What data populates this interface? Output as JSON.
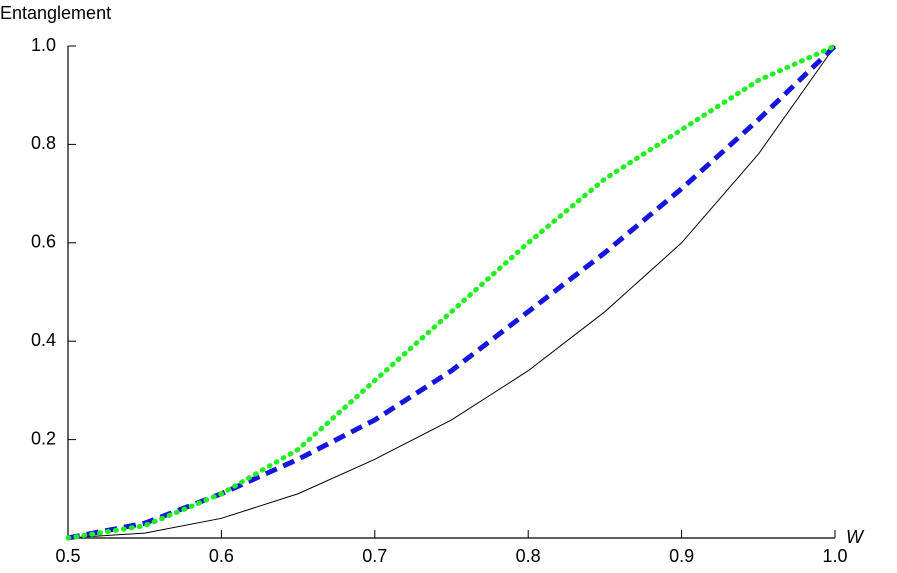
{
  "chart_data": {
    "type": "line",
    "y_label": "Entanglement",
    "x_label": "W",
    "x": [
      0.5,
      0.55,
      0.6,
      0.65,
      0.7,
      0.75,
      0.8,
      0.85,
      0.9,
      0.95,
      1.0
    ],
    "series": [
      {
        "color": "#000000",
        "style": "solid",
        "values": [
          0,
          0.01,
          0.04,
          0.09,
          0.16,
          0.24,
          0.34,
          0.46,
          0.6,
          0.78,
          1.0
        ]
      },
      {
        "color": "#1515dd",
        "style": "dashed",
        "values": [
          0,
          0.03,
          0.09,
          0.16,
          0.24,
          0.34,
          0.46,
          0.58,
          0.71,
          0.85,
          1.0
        ]
      },
      {
        "color": "#22ee22",
        "style": "dotted",
        "values": [
          0,
          0.025,
          0.09,
          0.18,
          0.32,
          0.46,
          0.6,
          0.73,
          0.83,
          0.93,
          1.0
        ]
      }
    ],
    "xlim": [
      0.5,
      1.0
    ],
    "ylim": [
      0,
      1.0
    ],
    "xticks": [
      0.5,
      0.6,
      0.7,
      0.8,
      0.9,
      {
        "value": 1.0,
        "label": "1.0"
      }
    ],
    "yticks": [
      0.2,
      0.4,
      0.6,
      0.8,
      {
        "value": 1.0,
        "label": "1.0"
      }
    ]
  }
}
